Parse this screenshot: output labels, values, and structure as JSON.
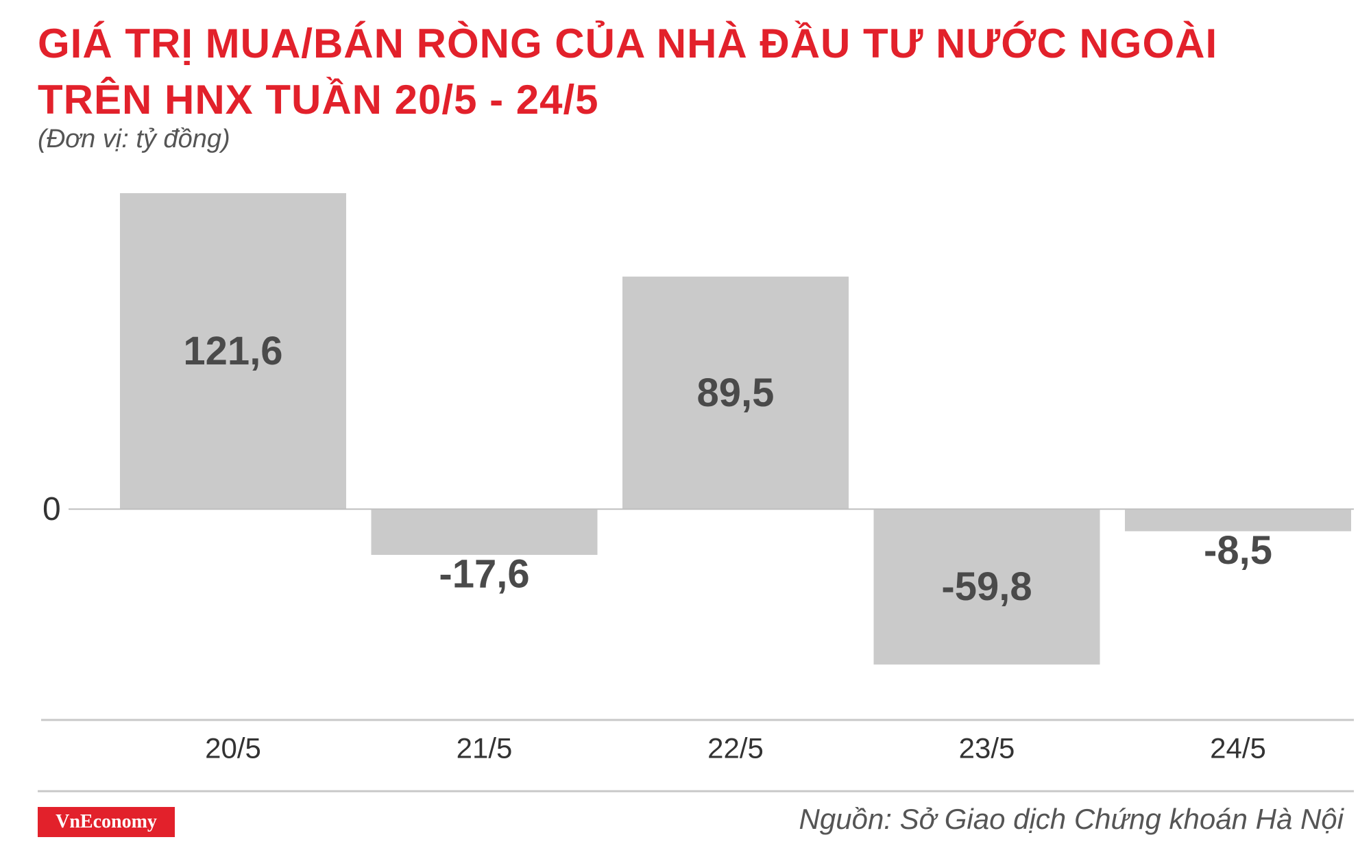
{
  "header": {
    "title_line_1": "GIÁ TRỊ MUA/BÁN RÒNG CỦA NHÀ ĐẦU TƯ NƯỚC NGOÀI",
    "title_line_2": "TRÊN HNX TUẦN 20/5 - 24/5",
    "unit": "(Đơn vị: tỷ đồng)"
  },
  "footer": {
    "logo_text": "VnEconomy",
    "source": "Nguồn: Sở Giao dịch Chứng khoán Hà Nội"
  },
  "colors": {
    "title": "#e2212b",
    "bar": "#cacaca",
    "bar_label": "#4a4a4a",
    "logo_bg": "#e2212b"
  },
  "chart_data": {
    "type": "bar",
    "title": "GIÁ TRỊ MUA/BÁN RÒNG CỦA NHÀ ĐẦU TƯ NƯỚC NGOÀI TRÊN HNX TUẦN 20/5 - 24/5",
    "subtitle": "(Đơn vị: tỷ đồng)",
    "categories": [
      "20/5",
      "21/5",
      "22/5",
      "23/5",
      "24/5"
    ],
    "values": [
      121.6,
      -17.6,
      89.5,
      -59.8,
      -8.5
    ],
    "value_labels": [
      "121,6",
      "-17,6",
      "89,5",
      "-59,8",
      "-8,5"
    ],
    "y_ticks": [
      "0"
    ],
    "ylim": [
      -69,
      121.6
    ],
    "xlabel": "",
    "ylabel": "",
    "grid": false,
    "legend": "none"
  }
}
